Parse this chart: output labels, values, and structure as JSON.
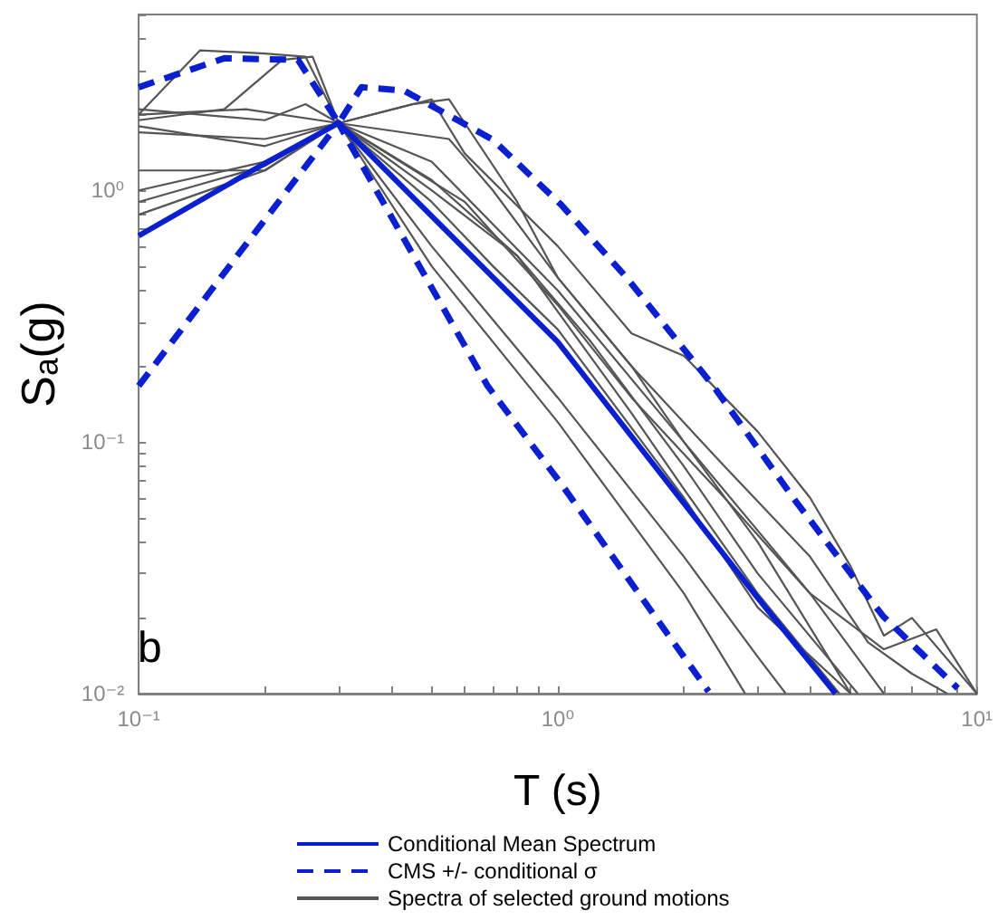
{
  "chart_data": {
    "type": "line",
    "xlabel": "T (s)",
    "ylabel": "Sₐ(g)",
    "log": "xy",
    "xlim": [
      0.1,
      10
    ],
    "ylim": [
      0.01,
      5
    ],
    "xticks": [
      {
        "value": 0.1,
        "label": "10⁻¹"
      },
      {
        "value": 0.2,
        "label": null
      },
      {
        "value": 0.3,
        "label": null
      },
      {
        "value": 0.4,
        "label": null
      },
      {
        "value": 0.5,
        "label": null
      },
      {
        "value": 0.6,
        "label": null
      },
      {
        "value": 0.7,
        "label": null
      },
      {
        "value": 0.8,
        "label": null
      },
      {
        "value": 0.9,
        "label": null
      },
      {
        "value": 1,
        "label": "10⁰"
      },
      {
        "value": 2,
        "label": null
      },
      {
        "value": 3,
        "label": null
      },
      {
        "value": 4,
        "label": null
      },
      {
        "value": 5,
        "label": null
      },
      {
        "value": 6,
        "label": null
      },
      {
        "value": 7,
        "label": null
      },
      {
        "value": 8,
        "label": null
      },
      {
        "value": 9,
        "label": null
      },
      {
        "value": 10,
        "label": "10¹"
      }
    ],
    "yticks": [
      {
        "value": 0.01,
        "label": "10⁻²"
      },
      {
        "value": 0.02,
        "label": null
      },
      {
        "value": 0.03,
        "label": null
      },
      {
        "value": 0.04,
        "label": null
      },
      {
        "value": 0.05,
        "label": null
      },
      {
        "value": 0.06,
        "label": null
      },
      {
        "value": 0.07,
        "label": null
      },
      {
        "value": 0.08,
        "label": null
      },
      {
        "value": 0.09,
        "label": null
      },
      {
        "value": 0.1,
        "label": "10⁻¹"
      },
      {
        "value": 0.2,
        "label": null
      },
      {
        "value": 0.3,
        "label": null
      },
      {
        "value": 0.4,
        "label": null
      },
      {
        "value": 0.5,
        "label": null
      },
      {
        "value": 0.6,
        "label": null
      },
      {
        "value": 0.7,
        "label": null
      },
      {
        "value": 0.8,
        "label": null
      },
      {
        "value": 0.9,
        "label": null
      },
      {
        "value": 1,
        "label": "10⁰"
      },
      {
        "value": 2,
        "label": null
      },
      {
        "value": 3,
        "label": null
      },
      {
        "value": 4,
        "label": null
      },
      {
        "value": 5,
        "label": null
      }
    ],
    "legend": "bottom",
    "marker": "none",
    "annotations": [
      "b"
    ],
    "series": [
      {
        "name": "Conditional Mean Spectrum",
        "color": "#0a1fd0",
        "line_style": "solid",
        "x": [
          0.1,
          0.2,
          0.3,
          0.5,
          1,
          2,
          3,
          4.6
        ],
        "values": [
          0.66,
          1.28,
          1.85,
          0.79,
          0.25,
          0.057,
          0.024,
          0.01
        ]
      },
      {
        "name": "CMS +/- conditional σ",
        "color": "#0a1fd0",
        "line_style": "dashed",
        "x": [
          0.1,
          0.16,
          0.24,
          0.3,
          0.34,
          0.43,
          0.7,
          1.02,
          1.46,
          2.35,
          3.7,
          5.96,
          9
        ],
        "values": [
          2.57,
          3.35,
          3.3,
          1.85,
          2.57,
          2.49,
          1.59,
          0.875,
          0.45,
          0.167,
          0.058,
          0.0204,
          0.0105
        ]
      },
      {
        "color": "#0a1fd0",
        "line_style": "dashed",
        "x": [
          0.1,
          0.16,
          0.3,
          0.315,
          0.68,
          1.02,
          1.56,
          2.29
        ],
        "values": [
          0.167,
          0.47,
          1.85,
          1.59,
          0.167,
          0.068,
          0.025,
          0.0102
        ]
      },
      {
        "name": "Spectra of selected ground motions",
        "color": "#555555",
        "line_style": "solid",
        "x": [
          0.1,
          0.14,
          0.2,
          0.25,
          0.3,
          0.5,
          0.8,
          1,
          1.5,
          2,
          3,
          4.7
        ],
        "values": [
          2.0,
          3.6,
          3.5,
          3.4,
          1.85,
          1.1,
          0.55,
          0.33,
          0.13,
          0.065,
          0.025,
          0.01
        ]
      },
      {
        "color": "#555555",
        "line_style": "solid",
        "x": [
          0.1,
          0.16,
          0.22,
          0.26,
          0.3,
          0.5,
          0.7,
          1,
          2,
          3,
          5
        ],
        "values": [
          1.9,
          2.1,
          3.3,
          3.4,
          1.85,
          0.9,
          0.5,
          0.28,
          0.06,
          0.022,
          0.01
        ]
      },
      {
        "color": "#555555",
        "line_style": "solid",
        "x": [
          0.1,
          0.2,
          0.25,
          0.3,
          0.45,
          0.55,
          0.8,
          1,
          1.5,
          2.5,
          4,
          5.5,
          7,
          8.5
        ],
        "values": [
          2.1,
          1.9,
          2.2,
          1.85,
          2.2,
          2.3,
          0.9,
          0.45,
          0.2,
          0.08,
          0.035,
          0.016,
          0.012,
          0.01
        ]
      },
      {
        "color": "#555555",
        "line_style": "solid",
        "x": [
          0.1,
          0.2,
          0.3,
          0.5,
          0.6,
          1,
          1.5,
          2,
          3,
          4,
          5,
          6,
          7,
          10
        ],
        "values": [
          1.8,
          1.5,
          1.85,
          2.3,
          1.4,
          0.6,
          0.27,
          0.22,
          0.11,
          0.06,
          0.032,
          0.017,
          0.02,
          0.01
        ]
      },
      {
        "color": "#555555",
        "line_style": "solid",
        "x": [
          0.1,
          0.2,
          0.3,
          0.6,
          1,
          1.5,
          2.5,
          4,
          6,
          8,
          10
        ],
        "values": [
          0.8,
          1.2,
          1.85,
          0.9,
          0.35,
          0.15,
          0.06,
          0.025,
          0.015,
          0.018,
          0.01
        ]
      },
      {
        "color": "#555555",
        "line_style": "solid",
        "x": [
          0.1,
          0.2,
          0.3,
          0.5,
          1,
          2,
          3,
          3.5
        ],
        "values": [
          0.9,
          1.25,
          1.85,
          0.6,
          0.15,
          0.035,
          0.014,
          0.01
        ]
      },
      {
        "color": "#555555",
        "line_style": "solid",
        "x": [
          0.1,
          0.2,
          0.3,
          0.5,
          1,
          2,
          2.8
        ],
        "values": [
          1.0,
          1.3,
          1.85,
          0.5,
          0.12,
          0.025,
          0.01
        ]
      },
      {
        "color": "#555555",
        "line_style": "solid",
        "x": [
          0.1,
          0.2,
          0.3,
          0.5,
          0.8,
          1.2,
          2,
          3,
          5.2
        ],
        "values": [
          1.7,
          1.6,
          1.85,
          1.0,
          0.55,
          0.25,
          0.08,
          0.03,
          0.01
        ]
      },
      {
        "color": "#555555",
        "line_style": "solid",
        "x": [
          0.1,
          0.2,
          0.3,
          0.55,
          0.7,
          1,
          1.5,
          2,
          3,
          5
        ],
        "values": [
          1.2,
          1.2,
          1.85,
          1.6,
          1.0,
          0.45,
          0.2,
          0.1,
          0.04,
          0.01
        ]
      },
      {
        "color": "#555555",
        "line_style": "solid",
        "x": [
          0.1,
          0.18,
          0.3,
          0.5,
          1,
          2,
          4,
          6
        ],
        "values": [
          2.0,
          2.1,
          1.85,
          1.3,
          0.4,
          0.1,
          0.025,
          0.01
        ]
      }
    ]
  }
}
